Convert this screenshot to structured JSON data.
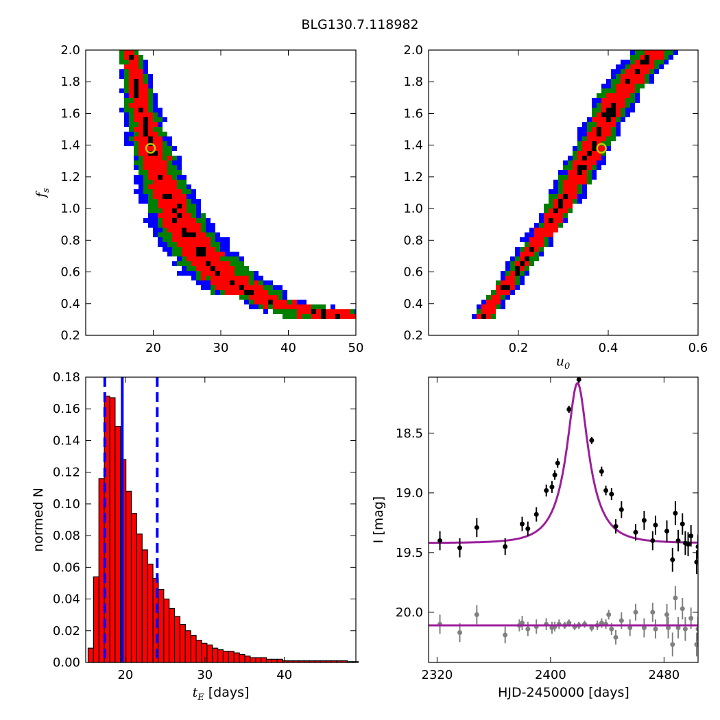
{
  "figure_title": "BLG130.7.118982",
  "chart_data": [
    {
      "panel": "top-left",
      "type": "heatmap",
      "xlabel": "",
      "ylabel": "f_s",
      "xlim": [
        10,
        50
      ],
      "ylim": [
        0.2,
        2.0
      ],
      "xticks": [
        "20",
        "30",
        "40",
        "50"
      ],
      "yticks": [
        "0.2",
        "0.4",
        "0.6",
        "0.8",
        "1.0",
        "1.2",
        "1.4",
        "1.6",
        "1.8",
        "2.0"
      ],
      "colors": {
        "outer": "#0000ff",
        "middle": "#008000",
        "inner": "#ff0000",
        "core": "#000000",
        "marker": "#c8c800"
      },
      "band_ridge": [
        {
          "x": 16.5,
          "y": 2.0
        },
        {
          "x": 17.5,
          "y": 1.8
        },
        {
          "x": 18.4,
          "y": 1.6
        },
        {
          "x": 19.6,
          "y": 1.4
        },
        {
          "x": 21.0,
          "y": 1.2
        },
        {
          "x": 23.0,
          "y": 1.0
        },
        {
          "x": 25.5,
          "y": 0.8
        },
        {
          "x": 29.0,
          "y": 0.62
        },
        {
          "x": 33.5,
          "y": 0.48
        },
        {
          "x": 40.0,
          "y": 0.38
        },
        {
          "x": 47.0,
          "y": 0.33
        }
      ],
      "best_fit": {
        "x": 19.6,
        "y": 1.38
      }
    },
    {
      "panel": "top-right",
      "type": "heatmap",
      "xlabel": "u_0",
      "ylabel": "",
      "xlim": [
        0.0,
        0.6
      ],
      "ylim": [
        0.2,
        2.0
      ],
      "xticks": [
        "0.2",
        "0.4",
        "0.6"
      ],
      "yticks": [
        "0.2",
        "0.4",
        "0.6",
        "0.8",
        "1.0",
        "1.2",
        "1.4",
        "1.6",
        "1.8",
        "2.0"
      ],
      "colors": {
        "outer": "#0000ff",
        "middle": "#008000",
        "inner": "#ff0000",
        "core": "#000000",
        "marker": "#c8c800"
      },
      "band_ridge": [
        {
          "x": 0.125,
          "y": 0.33
        },
        {
          "x": 0.17,
          "y": 0.5
        },
        {
          "x": 0.22,
          "y": 0.7
        },
        {
          "x": 0.27,
          "y": 0.9
        },
        {
          "x": 0.31,
          "y": 1.1
        },
        {
          "x": 0.35,
          "y": 1.3
        },
        {
          "x": 0.385,
          "y": 1.5
        },
        {
          "x": 0.42,
          "y": 1.7
        },
        {
          "x": 0.46,
          "y": 1.85
        },
        {
          "x": 0.51,
          "y": 2.0
        }
      ],
      "best_fit": {
        "x": 0.385,
        "y": 1.38
      }
    },
    {
      "panel": "bottom-left",
      "type": "bar",
      "xlabel": "t_E",
      "xlabel_suffix": "[days]",
      "ylabel": "normed N",
      "xlim": [
        15,
        49
      ],
      "ylim": [
        0.0,
        0.18
      ],
      "xticks": [
        "20",
        "30",
        "40"
      ],
      "yticks": [
        "0.00",
        "0.02",
        "0.04",
        "0.06",
        "0.08",
        "0.10",
        "0.12",
        "0.14",
        "0.16",
        "0.18"
      ],
      "bin_start": 15.3,
      "bin_width": 0.68,
      "values": [
        0.009,
        0.054,
        0.116,
        0.168,
        0.167,
        0.149,
        0.128,
        0.108,
        0.094,
        0.081,
        0.071,
        0.062,
        0.053,
        0.046,
        0.04,
        0.034,
        0.029,
        0.024,
        0.02,
        0.017,
        0.014,
        0.012,
        0.011,
        0.009,
        0.008,
        0.007,
        0.007,
        0.006,
        0.005,
        0.004,
        0.003,
        0.003,
        0.003,
        0.002,
        0.002,
        0.002,
        0.001,
        0.001,
        0.001,
        0.001,
        0.001,
        0.001,
        0.001,
        0.001,
        0.001,
        0.001,
        0.001,
        0.001,
        0.0005,
        0.0005
      ],
      "bar_color": "#ff0000",
      "median": 19.6,
      "lower": 17.4,
      "upper": 24.0,
      "line_color": "#0000ff"
    },
    {
      "panel": "bottom-right",
      "type": "scatter",
      "xlabel": "HJD-2450000 [days]",
      "ylabel": "I [mag]",
      "xlim": [
        2314,
        2504
      ],
      "ylim": [
        20.42,
        18.03
      ],
      "xticks": [
        "2320",
        "2400",
        "2480"
      ],
      "yticks": [
        "18.5",
        "19.0",
        "19.5",
        "20.0"
      ],
      "model_color": "#9b1f9b",
      "model": {
        "t0": 2419,
        "u0": 0.385,
        "tE": 19.6,
        "base": 19.42,
        "peak": 18.08
      },
      "residual_baseline": 20.11,
      "points": [
        {
          "x": 2322,
          "y": 19.4,
          "err": 0.08
        },
        {
          "x": 2336,
          "y": 19.46,
          "err": 0.08
        },
        {
          "x": 2348,
          "y": 19.29,
          "err": 0.08
        },
        {
          "x": 2368,
          "y": 19.45,
          "err": 0.07
        },
        {
          "x": 2380,
          "y": 19.26,
          "err": 0.06
        },
        {
          "x": 2384,
          "y": 19.3,
          "err": 0.06
        },
        {
          "x": 2390,
          "y": 19.18,
          "err": 0.06
        },
        {
          "x": 2397,
          "y": 18.98,
          "err": 0.05
        },
        {
          "x": 2401,
          "y": 18.95,
          "err": 0.05
        },
        {
          "x": 2403,
          "y": 18.85,
          "err": 0.04
        },
        {
          "x": 2405,
          "y": 18.75,
          "err": 0.04
        },
        {
          "x": 2413,
          "y": 18.3,
          "err": 0.03
        },
        {
          "x": 2420,
          "y": 18.05,
          "err": 0.03
        },
        {
          "x": 2429,
          "y": 18.56,
          "err": 0.03
        },
        {
          "x": 2436,
          "y": 18.82,
          "err": 0.04
        },
        {
          "x": 2439,
          "y": 18.98,
          "err": 0.04
        },
        {
          "x": 2443,
          "y": 19.01,
          "err": 0.05
        },
        {
          "x": 2446,
          "y": 19.28,
          "err": 0.06
        },
        {
          "x": 2450,
          "y": 19.14,
          "err": 0.07
        },
        {
          "x": 2460,
          "y": 19.33,
          "err": 0.07
        },
        {
          "x": 2466,
          "y": 19.23,
          "err": 0.08
        },
        {
          "x": 2472,
          "y": 19.4,
          "err": 0.08
        },
        {
          "x": 2474,
          "y": 19.27,
          "err": 0.08
        },
        {
          "x": 2482,
          "y": 19.32,
          "err": 0.09
        },
        {
          "x": 2486,
          "y": 19.56,
          "err": 0.1
        },
        {
          "x": 2488,
          "y": 19.17,
          "err": 0.1
        },
        {
          "x": 2490,
          "y": 19.4,
          "err": 0.09
        },
        {
          "x": 2493,
          "y": 19.26,
          "err": 0.09
        },
        {
          "x": 2495,
          "y": 19.42,
          "err": 0.1
        },
        {
          "x": 2497,
          "y": 19.43,
          "err": 0.1
        },
        {
          "x": 2499,
          "y": 19.36,
          "err": 0.09
        },
        {
          "x": 2503,
          "y": 19.58,
          "err": 0.1
        },
        {
          "x": 2504,
          "y": 19.45,
          "err": 0.1
        }
      ],
      "residuals": [
        {
          "x": 2322,
          "y": 20.1,
          "err": 0.08
        },
        {
          "x": 2336,
          "y": 20.17,
          "err": 0.08
        },
        {
          "x": 2348,
          "y": 20.02,
          "err": 0.08
        },
        {
          "x": 2368,
          "y": 20.19,
          "err": 0.07
        },
        {
          "x": 2378,
          "y": 20.11,
          "err": 0.05
        },
        {
          "x": 2380,
          "y": 20.09,
          "err": 0.06
        },
        {
          "x": 2384,
          "y": 20.14,
          "err": 0.06
        },
        {
          "x": 2390,
          "y": 20.12,
          "err": 0.06
        },
        {
          "x": 2397,
          "y": 20.1,
          "err": 0.05
        },
        {
          "x": 2401,
          "y": 20.13,
          "err": 0.05
        },
        {
          "x": 2403,
          "y": 20.12,
          "err": 0.04
        },
        {
          "x": 2406,
          "y": 20.1,
          "err": 0.04
        },
        {
          "x": 2410,
          "y": 20.11,
          "err": 0.03
        },
        {
          "x": 2413,
          "y": 20.09,
          "err": 0.03
        },
        {
          "x": 2417,
          "y": 20.12,
          "err": 0.03
        },
        {
          "x": 2420,
          "y": 20.11,
          "err": 0.03
        },
        {
          "x": 2424,
          "y": 20.1,
          "err": 0.03
        },
        {
          "x": 2429,
          "y": 20.13,
          "err": 0.03
        },
        {
          "x": 2433,
          "y": 20.11,
          "err": 0.04
        },
        {
          "x": 2436,
          "y": 20.09,
          "err": 0.04
        },
        {
          "x": 2439,
          "y": 20.1,
          "err": 0.04
        },
        {
          "x": 2441,
          "y": 20.02,
          "err": 0.04
        },
        {
          "x": 2443,
          "y": 20.14,
          "err": 0.05
        },
        {
          "x": 2446,
          "y": 20.21,
          "err": 0.06
        },
        {
          "x": 2450,
          "y": 20.07,
          "err": 0.07
        },
        {
          "x": 2456,
          "y": 20.13,
          "err": 0.07
        },
        {
          "x": 2460,
          "y": 20.0,
          "err": 0.07
        },
        {
          "x": 2466,
          "y": 20.13,
          "err": 0.08
        },
        {
          "x": 2472,
          "y": 20.0,
          "err": 0.08
        },
        {
          "x": 2474,
          "y": 20.14,
          "err": 0.08
        },
        {
          "x": 2482,
          "y": 20.02,
          "err": 0.09
        },
        {
          "x": 2483,
          "y": 20.13,
          "err": 0.09
        },
        {
          "x": 2486,
          "y": 20.27,
          "err": 0.1
        },
        {
          "x": 2488,
          "y": 19.88,
          "err": 0.1
        },
        {
          "x": 2490,
          "y": 20.13,
          "err": 0.09
        },
        {
          "x": 2493,
          "y": 19.97,
          "err": 0.09
        },
        {
          "x": 2495,
          "y": 20.14,
          "err": 0.1
        },
        {
          "x": 2499,
          "y": 20.05,
          "err": 0.09
        },
        {
          "x": 2503,
          "y": 20.27,
          "err": 0.1
        },
        {
          "x": 2504,
          "y": 20.14,
          "err": 0.1
        }
      ]
    }
  ]
}
